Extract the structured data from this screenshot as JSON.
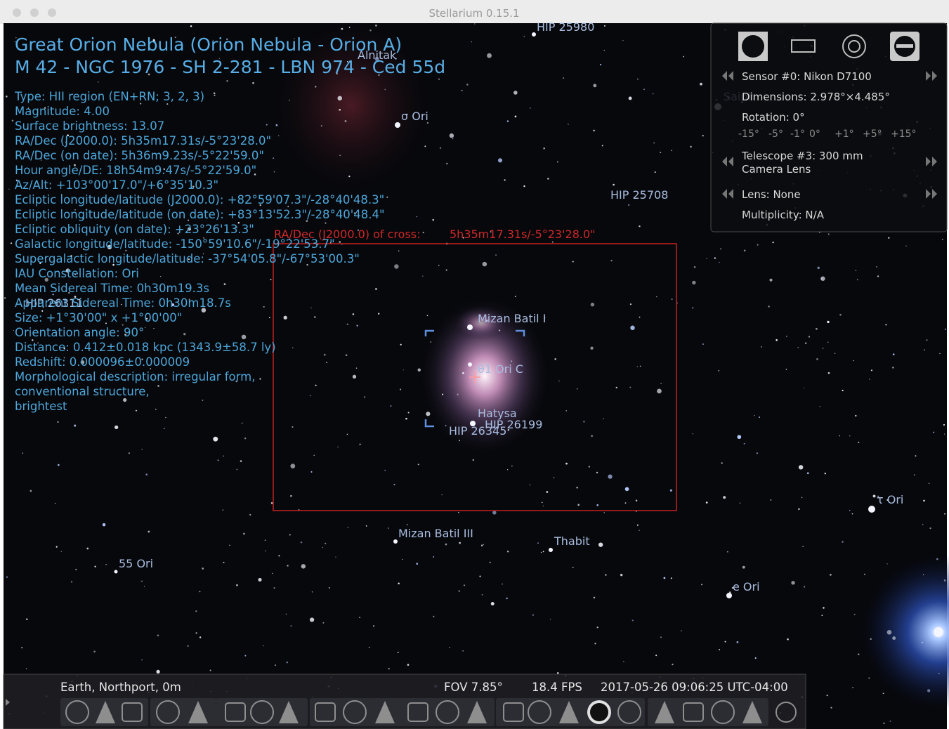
{
  "window": {
    "title": "Stellarium 0.15.1"
  },
  "object_info": {
    "title_lines": [
      "Great Orion Nebula (Orion Nebula - Orion A)",
      "M 42 - NGC 1976 - SH 2-281 - LBN 974 - Ced 55d"
    ],
    "lines": [
      "Type: HII region (EN+RN; 3, 2, 3)",
      "Magnitude: 4.00",
      "Surface brightness: 13.07",
      "RA/Dec (J2000.0): 5h35m17.31s/-5°23'28.0\"",
      "RA/Dec (on date): 5h36m9.23s/-5°22'59.0\"",
      "Hour angle/DE: 18h54m9.47s/-5°22'59.0\"",
      "Az/Alt: +103°00'17.0\"/+6°35'10.3\"",
      "Ecliptic longitude/latitude (J2000.0): +82°59'07.3\"/-28°40'48.3\"",
      "Ecliptic longitude/latitude (on date): +83°13'52.3\"/-28°40'48.4\"",
      "Ecliptic obliquity (on date): +23°26'13.3\"",
      "Galactic longitude/latitude: -150°59'10.6\"/-19°22'53.7\"",
      "Supergalactic longitude/latitude: -37°54'05.8\"/-67°53'00.3\"",
      "IAU Constellation: Ori",
      "Mean Sidereal Time: 0h30m19.3s",
      "Apparent Sidereal Time: 0h30m18.7s",
      "Size: +1°30'00\" x +1°00'00\"",
      "Orientation angle: 90°",
      "Distance: 0.412±0.018 kpc (1343.9±58.7 ly)",
      "Redshift: 0.000096±0.000009",
      "Morphological description: irregular form,",
      "conventional structure,",
      "brightest"
    ]
  },
  "star_labels": [
    "HIP 25980",
    "Alnitak",
    "σ Ori",
    "HIP 25708",
    "Saiph",
    "HIP 26311",
    "Mizan Batil I",
    "θ1 Ori C",
    "Hatysa",
    "HIP 26199",
    "HIP 26345",
    "Mizan Batil III",
    "Thabit",
    "55 Ori",
    "τ Ori",
    "e Ori"
  ],
  "cross": {
    "label": "RA/Dec (J2000.0) of cross:",
    "value": "5h35m17.31s/-5°23'28.0\""
  },
  "oculars": {
    "sensor": "Sensor #0: Nikon D7100",
    "dimensions": "Dimensions: 2.978°×4.485°",
    "rotation": "Rotation: 0°",
    "rotation_buttons": [
      "-15°",
      "-5°",
      "-1°",
      "0°",
      "+1°",
      "+5°",
      "+15°"
    ],
    "telescope": "Telescope #3: 300 mm",
    "camera_lens": "Camera Lens",
    "lens": "Lens: None",
    "multiplicity": "Multiplicity: N/A"
  },
  "status_bar": {
    "location": "Earth, Northport, 0m",
    "fov": "FOV 7.85°",
    "fps": "18.4 FPS",
    "datetime": "2017-05-26 09:06:25 UTC-04:00"
  }
}
